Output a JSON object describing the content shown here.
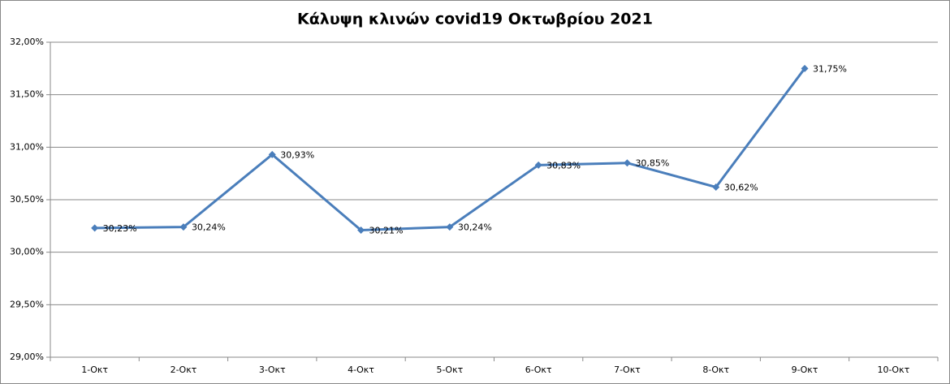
{
  "chart_data": {
    "type": "line",
    "title": "Κάλυψη κλινών covid19 Οκτωβρίου 2021",
    "categories": [
      "1-Οκτ",
      "2-Οκτ",
      "3-Οκτ",
      "4-Οκτ",
      "5-Οκτ",
      "6-Οκτ",
      "7-Οκτ",
      "8-Οκτ",
      "9-Οκτ",
      "10-Οκτ"
    ],
    "values": [
      30.23,
      30.24,
      30.93,
      30.21,
      30.24,
      30.83,
      30.85,
      30.62,
      31.75,
      null
    ],
    "value_labels": [
      "30,23%",
      "30,24%",
      "30,93%",
      "30,21%",
      "30,24%",
      "30,83%",
      "30,85%",
      "30,62%",
      "31,75%",
      null
    ],
    "color": "#4a7ebb",
    "ylim": [
      29,
      32
    ],
    "yticks": [
      {
        "value": 29,
        "label": "29,00%"
      },
      {
        "value": 29.5,
        "label": "29,50%"
      },
      {
        "value": 30,
        "label": "30,00%"
      },
      {
        "value": 30.5,
        "label": "30,50%"
      },
      {
        "value": 31,
        "label": "31,00%"
      },
      {
        "value": 31.5,
        "label": "31,50%"
      },
      {
        "value": 32,
        "label": "32,00%"
      }
    ],
    "grid": true
  }
}
